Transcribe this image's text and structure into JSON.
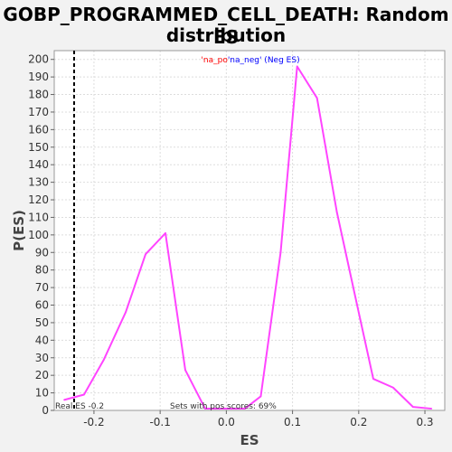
{
  "title_line1": "GOBP_PROGRAMMED_CELL_DEATH: Random ES",
  "title_line2": "distribution",
  "chart_data": {
    "type": "line",
    "title": "GOBP_PROGRAMMED_CELL_DEATH: Random ES distribution",
    "xlabel": "ES",
    "ylabel": "P(ES)",
    "xlim": [
      -0.26,
      0.33
    ],
    "ylim": [
      0,
      205
    ],
    "x_ticks": [
      -0.2,
      -0.1,
      0.0,
      0.1,
      0.2,
      0.3
    ],
    "x_tick_labels": [
      "-0.2",
      "-0.1",
      "0.0",
      "0.1",
      "0.2",
      "0.3"
    ],
    "y_ticks": [
      0,
      10,
      20,
      30,
      40,
      50,
      60,
      70,
      80,
      90,
      100,
      110,
      120,
      130,
      140,
      150,
      160,
      170,
      180,
      190,
      200
    ],
    "grid": true,
    "legend": {
      "pos_text": "'na_po",
      "neg_text": "'na_neg' (Neg ES)",
      "placement": "top-center"
    },
    "series": [
      {
        "color": "#ff44ff",
        "x": [
          -0.245,
          -0.215,
          -0.185,
          -0.152,
          -0.122,
          -0.092,
          -0.062,
          -0.032,
          -0.002,
          0.028,
          0.052,
          0.082,
          0.107,
          0.137,
          0.167,
          0.197,
          0.222,
          0.252,
          0.282,
          0.31
        ],
        "values": [
          6,
          9,
          29,
          56,
          89,
          101,
          23,
          1,
          1,
          1,
          8,
          90,
          196,
          178,
          113,
          61,
          18,
          13,
          2,
          1
        ]
      }
    ],
    "real_es": {
      "value": -0.23,
      "label": "Real ES -0.2"
    },
    "annotation": "Sets with pos scores: 69%"
  }
}
